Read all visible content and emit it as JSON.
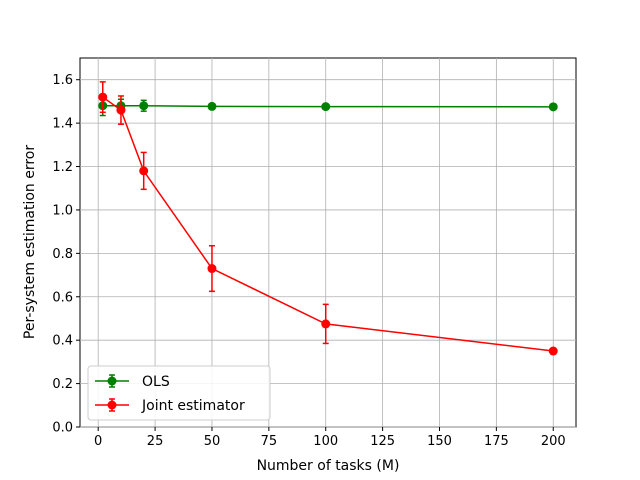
{
  "chart_data": {
    "type": "line",
    "xlabel": "Number of tasks (M)",
    "ylabel": "Per-system estimation error",
    "xlim": [
      -8,
      210
    ],
    "ylim": [
      0.0,
      1.7
    ],
    "xticks": [
      0,
      25,
      50,
      75,
      100,
      125,
      150,
      175,
      200
    ],
    "yticks": [
      0.0,
      0.2,
      0.4,
      0.6,
      0.8,
      1.0,
      1.2,
      1.4,
      1.6
    ],
    "xtick_labels": [
      "0",
      "25",
      "50",
      "75",
      "100",
      "125",
      "150",
      "175",
      "200"
    ],
    "ytick_labels": [
      "0.0",
      "0.2",
      "0.4",
      "0.6",
      "0.8",
      "1.0",
      "1.2",
      "1.4",
      "1.6"
    ],
    "grid": true,
    "legend_position": "lower-left",
    "x": [
      2,
      10,
      20,
      50,
      100,
      200
    ],
    "series": [
      {
        "name": "OLS",
        "color": "#008000",
        "values": [
          1.48,
          1.48,
          1.48,
          1.477,
          1.476,
          1.475
        ],
        "errors": [
          0.045,
          0.03,
          0.025,
          0.012,
          0.01,
          0.008
        ]
      },
      {
        "name": "Joint estimator",
        "color": "#ff0000",
        "values": [
          1.52,
          1.46,
          1.18,
          0.73,
          0.475,
          0.35
        ],
        "errors": [
          0.07,
          0.065,
          0.085,
          0.105,
          0.09,
          0.01
        ]
      }
    ]
  }
}
